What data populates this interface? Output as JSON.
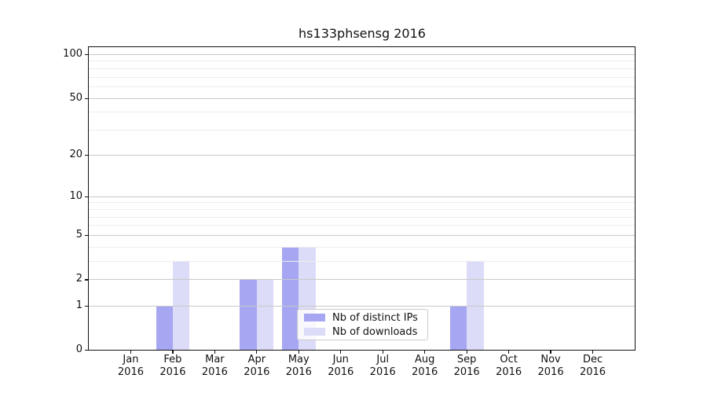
{
  "chart_data": {
    "type": "bar",
    "title": "hs133phsensg 2016",
    "categories": [
      "Jan",
      "Feb",
      "Mar",
      "Apr",
      "May",
      "Jun",
      "Jul",
      "Aug",
      "Sep",
      "Oct",
      "Nov",
      "Dec"
    ],
    "category_year": "2016",
    "series": [
      {
        "name": "Nb of distinct IPs",
        "color": "#a6a6f2",
        "values": [
          0,
          1,
          0,
          2,
          4,
          0,
          0,
          0,
          1,
          0,
          0,
          0
        ]
      },
      {
        "name": "Nb of downloads",
        "color": "#dcdcf8",
        "values": [
          0,
          3,
          0,
          2,
          4,
          0,
          0,
          0,
          3,
          0,
          0,
          0
        ]
      }
    ],
    "yscale": "log(1+x)",
    "ylim": [
      0,
      113
    ],
    "y_tick_labels": [
      0,
      1,
      2,
      5,
      10,
      20,
      50,
      100
    ],
    "y_minor_gridlines": [
      3,
      4,
      6,
      7,
      8,
      9,
      30,
      40,
      60,
      70,
      80,
      90
    ],
    "xlabel": "",
    "ylabel": "",
    "grid": "horizontal, drawn above bars",
    "legend_position": "lower center"
  }
}
